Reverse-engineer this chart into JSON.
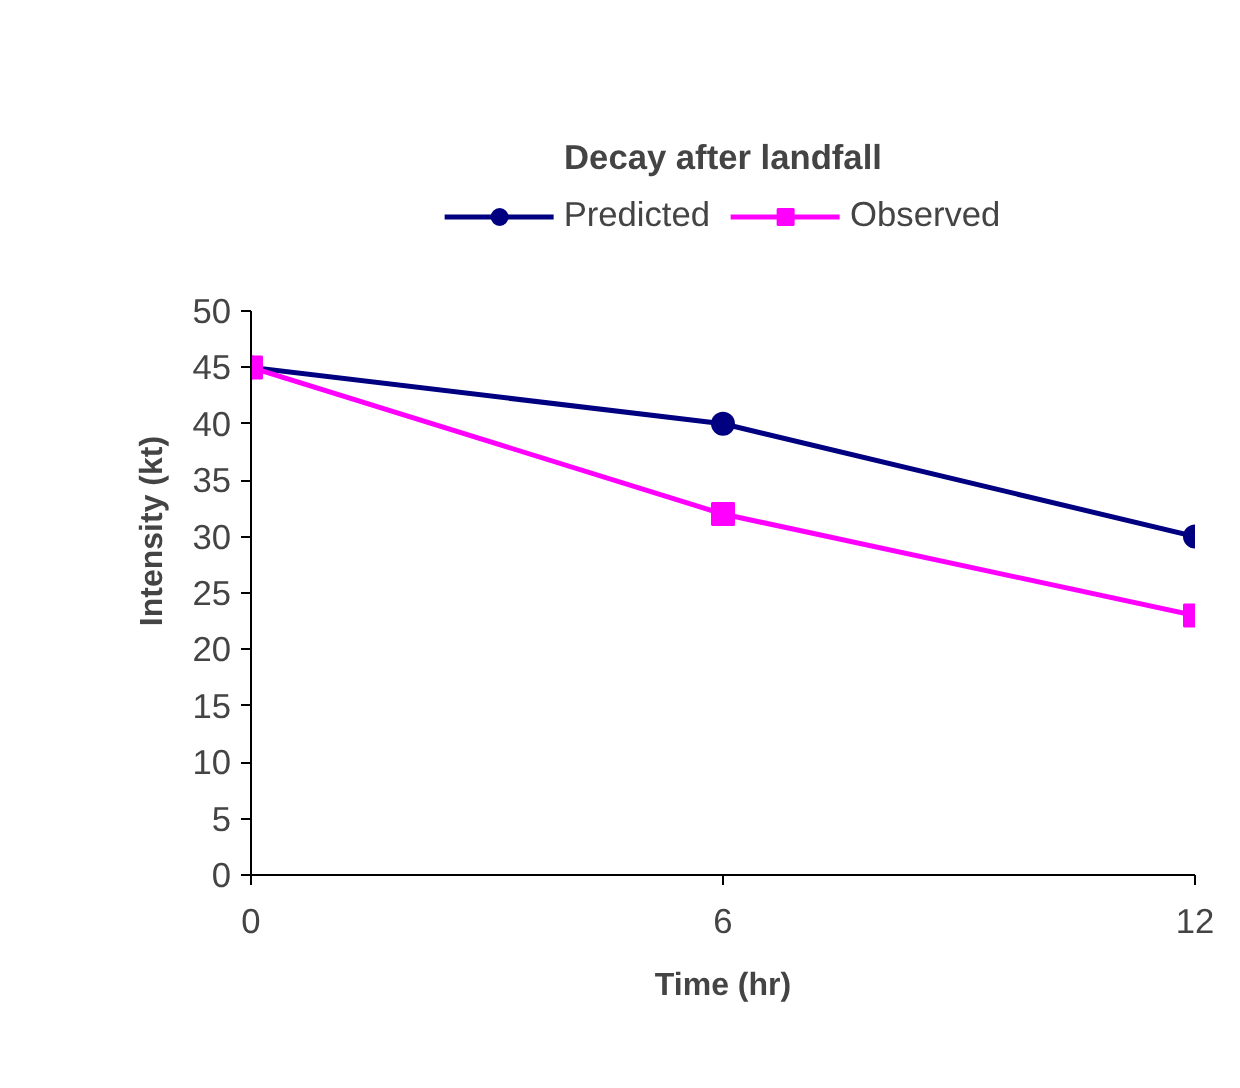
{
  "chart_data": {
    "type": "line",
    "title": "Decay after landfall",
    "xlabel": "Time (hr)",
    "ylabel": "Intensity (kt)",
    "x": [
      0,
      6,
      12
    ],
    "series": [
      {
        "name": "Predicted",
        "color": "#000080",
        "values": [
          45,
          40,
          30
        ],
        "marker": "circle"
      },
      {
        "name": "Observed",
        "color": "#ff00ff",
        "values": [
          45,
          32,
          23
        ],
        "marker": "square"
      }
    ],
    "xlim": [
      0,
      12
    ],
    "xticks": [
      0,
      6,
      12
    ],
    "ylim": [
      0,
      50
    ],
    "yticks": [
      0,
      5,
      10,
      15,
      20,
      25,
      30,
      35,
      40,
      45,
      50
    ],
    "grid": false,
    "legend": "top",
    "line_style": "solid"
  }
}
